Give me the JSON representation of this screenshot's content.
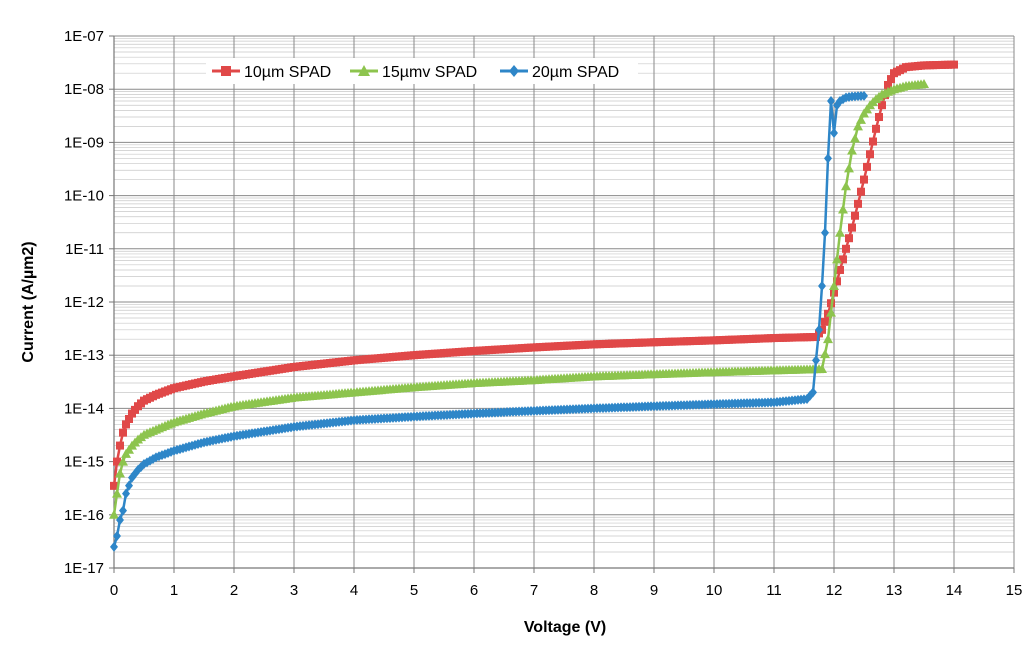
{
  "chart_data": {
    "type": "line",
    "title": "",
    "xlabel": "Voltage (V)",
    "ylabel": "Current (A/µm2)",
    "y_scale": "log",
    "xlim": [
      0,
      15
    ],
    "ylim": [
      1e-17,
      1e-07
    ],
    "x_ticks": [
      "0",
      "1",
      "2",
      "3",
      "4",
      "5",
      "6",
      "7",
      "8",
      "9",
      "10",
      "11",
      "12",
      "13",
      "14",
      "15"
    ],
    "y_ticks": [
      "1E-17",
      "1E-16",
      "1E-15",
      "1E-14",
      "1E-13",
      "1E-12",
      "1E-11",
      "1E-10",
      "1E-09",
      "1E-08",
      "1E-07"
    ],
    "grid": "major and minor",
    "legend_position": "top-left-inside",
    "series": [
      {
        "name": "10µm SPAD",
        "color": "#E04848",
        "marker": "square",
        "x": [
          0,
          0.05,
          0.1,
          0.15,
          0.2,
          0.3,
          0.4,
          0.5,
          0.7,
          1,
          1.5,
          2,
          3,
          4,
          5,
          6,
          7,
          8,
          9,
          10,
          11,
          11.7,
          11.8,
          11.9,
          12,
          12.1,
          12.2,
          12.3,
          12.4,
          12.5,
          12.6,
          12.7,
          12.8,
          12.9,
          13,
          13.2,
          13.5,
          14
        ],
        "y": [
          3.5e-16,
          1e-15,
          2e-15,
          3.5e-15,
          5e-15,
          8e-15,
          1.1e-14,
          1.4e-14,
          1.8e-14,
          2.4e-14,
          3.2e-14,
          4e-14,
          6e-14,
          8e-14,
          1e-13,
          1.2e-13,
          1.4e-13,
          1.6e-13,
          1.75e-13,
          1.9e-13,
          2.1e-13,
          2.2e-13,
          3e-13,
          6e-13,
          1.5e-12,
          4e-12,
          1e-11,
          2.5e-11,
          7e-11,
          2e-10,
          6e-10,
          1.8e-09,
          5e-09,
          1.2e-08,
          2e-08,
          2.6e-08,
          2.8e-08,
          2.9e-08
        ]
      },
      {
        "name": "15µmv SPAD",
        "color": "#8DC44E",
        "marker": "triangle",
        "x": [
          0,
          0.05,
          0.1,
          0.15,
          0.2,
          0.3,
          0.4,
          0.5,
          0.7,
          1,
          1.5,
          2,
          3,
          4,
          5,
          6,
          7,
          8,
          9,
          10,
          11,
          11.8,
          11.9,
          12,
          12.1,
          12.2,
          12.3,
          12.4,
          12.5,
          12.6,
          12.7,
          12.8,
          13,
          13.2,
          13.5
        ],
        "y": [
          1e-16,
          2.5e-16,
          6e-16,
          1e-15,
          1.4e-15,
          2e-15,
          2.6e-15,
          3.2e-15,
          4e-15,
          5.5e-15,
          8e-15,
          1.1e-14,
          1.6e-14,
          2e-14,
          2.5e-14,
          3e-14,
          3.4e-14,
          4e-14,
          4.4e-14,
          4.8e-14,
          5.2e-14,
          5.5e-14,
          2e-13,
          2e-12,
          2e-11,
          1.5e-10,
          7e-10,
          2e-09,
          3.5e-09,
          5e-09,
          6.5e-09,
          8e-09,
          1e-08,
          1.15e-08,
          1.25e-08
        ]
      },
      {
        "name": "20µm SPAD",
        "color": "#2E86C8",
        "marker": "diamond",
        "x": [
          0,
          0.05,
          0.1,
          0.15,
          0.2,
          0.3,
          0.4,
          0.5,
          0.7,
          1,
          1.5,
          2,
          3,
          4,
          5,
          6,
          7,
          8,
          9,
          10,
          11,
          11.55,
          11.65,
          11.7,
          11.75,
          11.8,
          11.85,
          11.9,
          11.95,
          12,
          12.05,
          12.1,
          12.2,
          12.3,
          12.5
        ],
        "y": [
          2.5e-17,
          4e-17,
          8e-17,
          1.2e-16,
          2.5e-16,
          5e-16,
          7e-16,
          9e-16,
          1.2e-15,
          1.6e-15,
          2.3e-15,
          3e-15,
          4.5e-15,
          6e-15,
          7e-15,
          8e-15,
          9e-15,
          1e-14,
          1.1e-14,
          1.2e-14,
          1.3e-14,
          1.5e-14,
          2e-14,
          8e-14,
          3e-13,
          2e-12,
          2e-11,
          5e-10,
          6e-09,
          1.5e-09,
          5e-09,
          6e-09,
          7e-09,
          7.3e-09,
          7.5e-09
        ]
      }
    ]
  }
}
